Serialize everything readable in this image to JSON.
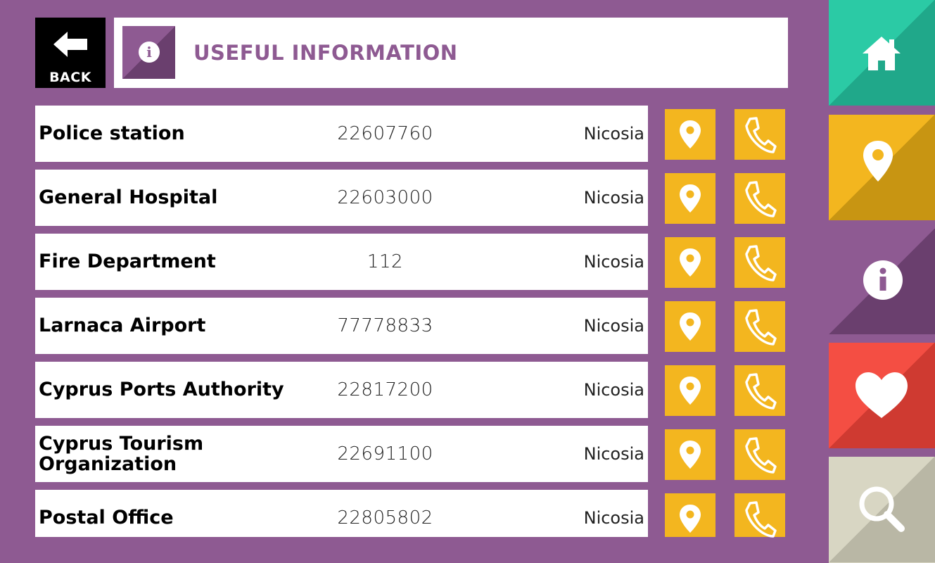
{
  "back": {
    "label": "BACK"
  },
  "header": {
    "title": "USEFUL INFORMATION"
  },
  "rows": [
    {
      "name": "Police station",
      "phone": "22607760",
      "city": "Nicosia"
    },
    {
      "name": "General Hospital",
      "phone": "22603000",
      "city": "Nicosia"
    },
    {
      "name": "Fire Department",
      "phone": "112",
      "city": "Nicosia"
    },
    {
      "name": "Larnaca Airport",
      "phone": "77778833",
      "city": "Nicosia"
    },
    {
      "name": "Cyprus Ports Authority",
      "phone": "22817200",
      "city": "Nicosia"
    },
    {
      "name": "Cyprus Tourism Organization",
      "phone": "22691100",
      "city": "Nicosia"
    },
    {
      "name": "Postal Office",
      "phone": "22805802",
      "city": "Nicosia"
    }
  ],
  "row_actions": {
    "map_icon": "map-pin-icon",
    "call_icon": "phone-icon"
  },
  "nav": [
    {
      "icon": "home-icon",
      "color": "#2bcaa5"
    },
    {
      "icon": "map-pin-icon",
      "color": "#f3b61f"
    },
    {
      "icon": "info-icon",
      "color": "#8e5a92"
    },
    {
      "icon": "heart-icon",
      "color": "#f44e43"
    },
    {
      "icon": "search-icon",
      "color": "#d8d6c3"
    }
  ],
  "colors": {
    "background": "#8e5a92",
    "accent_yellow": "#f3b61f",
    "title_purple": "#8e5a92"
  }
}
